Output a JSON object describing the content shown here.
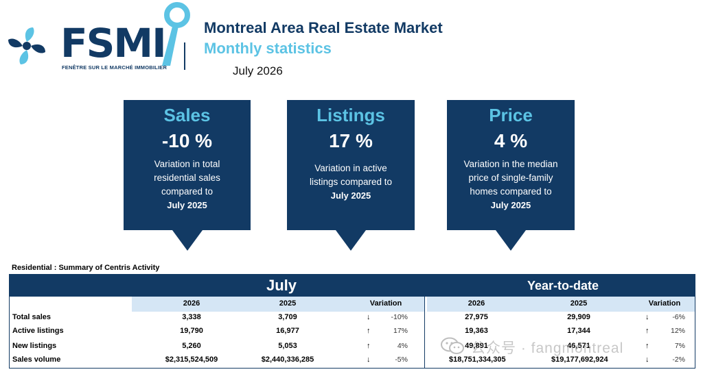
{
  "header": {
    "logo_text": "FSMI",
    "logo_tagline": "FENÊTRE SUR LE MARCHÉ IMMOBILIER",
    "title": "Montreal Area Real Estate Market",
    "subtitle": "Monthly statistics",
    "period": "July 2026",
    "colors": {
      "navy": "#123a64",
      "cyan": "#5cc3e4"
    }
  },
  "kpis": [
    {
      "title": "Sales",
      "value": "-10 %",
      "description": "Variation in total residential sales compared to",
      "reference": "July 2025"
    },
    {
      "title": "Listings",
      "value": "17 %",
      "description": "Variation in active listings compared to",
      "reference": "July 2025"
    },
    {
      "title": "Price",
      "value": "4 %",
      "description": "Variation in the median price of single-family homes compared to",
      "reference": "July 2025"
    }
  ],
  "table": {
    "caption": "Residential : Summary of Centris Activity",
    "july_label": "July",
    "ytd_label": "Year-to-date",
    "columns": {
      "current": "2026",
      "previous": "2025",
      "variation": "Variation"
    },
    "rows": [
      {
        "label": "Total sales",
        "july_2026": "3,338",
        "july_2025": "3,709",
        "july_dir": "down",
        "july_var": "-10%",
        "ytd_2026": "27,975",
        "ytd_2025": "29,909",
        "ytd_dir": "down",
        "ytd_var": "-6%"
      },
      {
        "label": "Active listings",
        "july_2026": "19,790",
        "july_2025": "16,977",
        "july_dir": "up",
        "july_var": "17%",
        "ytd_2026": "19,363",
        "ytd_2025": "17,344",
        "ytd_dir": "up",
        "ytd_var": "12%"
      },
      {
        "label": "New listings",
        "july_2026": "5,260",
        "july_2025": "5,053",
        "july_dir": "up",
        "july_var": "4%",
        "ytd_2026": "49,891",
        "ytd_2025": "46,571",
        "ytd_dir": "up",
        "ytd_var": "7%"
      },
      {
        "label": "Sales volume",
        "july_2026": "$2,315,524,509",
        "july_2025": "$2,440,336,285",
        "july_dir": "down",
        "july_var": "-5%",
        "ytd_2026": "$18,751,334,305",
        "ytd_2025": "$19,177,692,924",
        "ytd_dir": "down",
        "ytd_var": "-2%"
      }
    ]
  },
  "watermark": {
    "text": "公众号 · fangmontreal",
    "icon": "wechat-icon"
  }
}
